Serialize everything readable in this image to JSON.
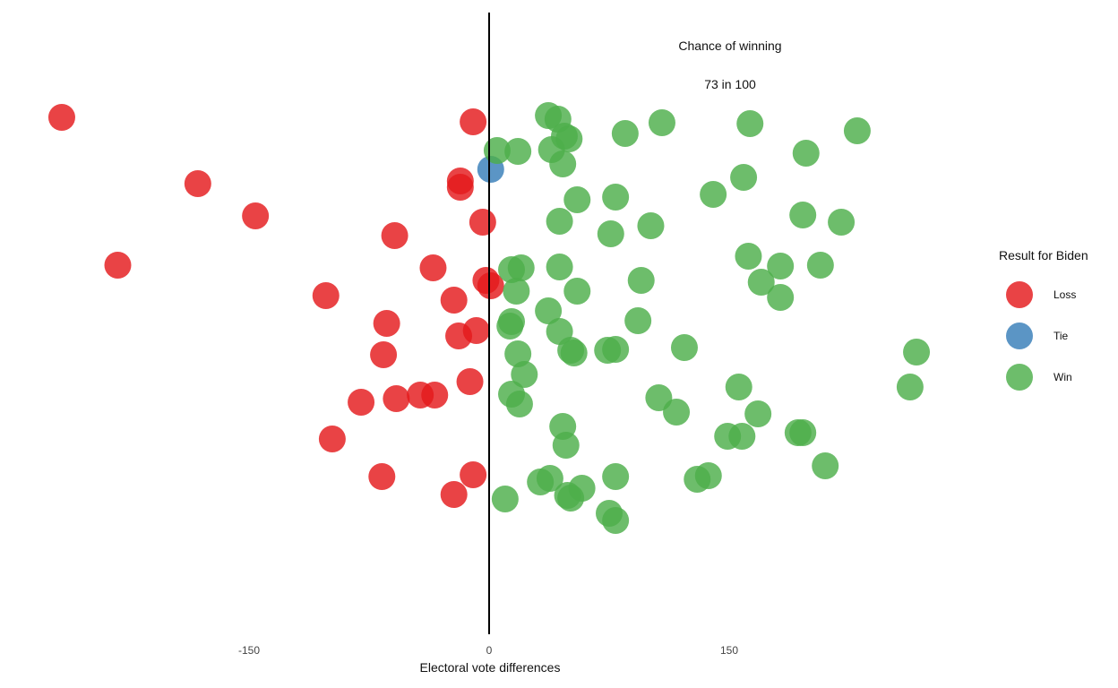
{
  "chart_data": {
    "type": "scatter",
    "title": "",
    "xlabel": "Electoral vote differences",
    "ylabel": "",
    "xlim": [
      -270,
      320
    ],
    "x_ticks": [
      -150,
      0,
      150
    ],
    "x_tick_labels": [
      "-150",
      "0",
      "150"
    ],
    "reference_line_x": 0,
    "grid": false,
    "legend": {
      "title": "Result for Biden",
      "position": "right",
      "items": [
        {
          "label": "Loss",
          "color": "#E41A1C"
        },
        {
          "label": "Tie",
          "color": "#377EB8"
        },
        {
          "label": "Win",
          "color": "#4DAF4A"
        }
      ]
    },
    "annotations": [
      "Chance of winning",
      "73 in 100"
    ],
    "series": [
      {
        "name": "Loss",
        "color": "#E41A1C",
        "x": [
          -267,
          -10,
          -182,
          -18,
          -18,
          -146,
          -4,
          -59,
          -232,
          -35,
          -2,
          -102,
          -22,
          1,
          -64,
          -19,
          -8,
          -66,
          -80,
          -58,
          -43,
          -34,
          -12,
          -98,
          -67,
          -10,
          -22
        ],
        "y": [
          131,
          136,
          205,
          202,
          209,
          241,
          248,
          263,
          296,
          299,
          313,
          330,
          335,
          319,
          361,
          375,
          369,
          396,
          449,
          445,
          441,
          441,
          426,
          490,
          532,
          530,
          552
        ]
      },
      {
        "name": "Tie",
        "color": "#377EB8",
        "x": [
          1
        ],
        "y": [
          189
        ]
      },
      {
        "name": "Win",
        "color": "#4DAF4A",
        "x": [
          37,
          43,
          5,
          18,
          39,
          47,
          50,
          46,
          85,
          108,
          163,
          230,
          198,
          159,
          140,
          55,
          79,
          44,
          76,
          101,
          196,
          220,
          162,
          182,
          207,
          170,
          182,
          14,
          20,
          44,
          17,
          55,
          95,
          37,
          14,
          13,
          44,
          51,
          53,
          74,
          79,
          93,
          122,
          18,
          22,
          14,
          19,
          46,
          48,
          106,
          117,
          156,
          168,
          193,
          149,
          158,
          196,
          210,
          267,
          263,
          10,
          32,
          38,
          49,
          51,
          58,
          79,
          75,
          79,
          130,
          137
        ],
        "y": [
          129,
          133,
          168,
          169,
          167,
          152,
          155,
          183,
          149,
          137,
          138,
          146,
          171,
          198,
          217,
          223,
          220,
          247,
          261,
          252,
          240,
          248,
          286,
          297,
          296,
          315,
          332,
          301,
          299,
          298,
          325,
          325,
          313,
          347,
          359,
          364,
          370,
          391,
          394,
          391,
          390,
          358,
          388,
          395,
          418,
          440,
          451,
          476,
          497,
          444,
          460,
          432,
          462,
          483,
          487,
          487,
          483,
          520,
          393,
          432,
          557,
          538,
          534,
          553,
          556,
          545,
          532,
          573,
          581,
          535,
          531
        ]
      }
    ]
  }
}
